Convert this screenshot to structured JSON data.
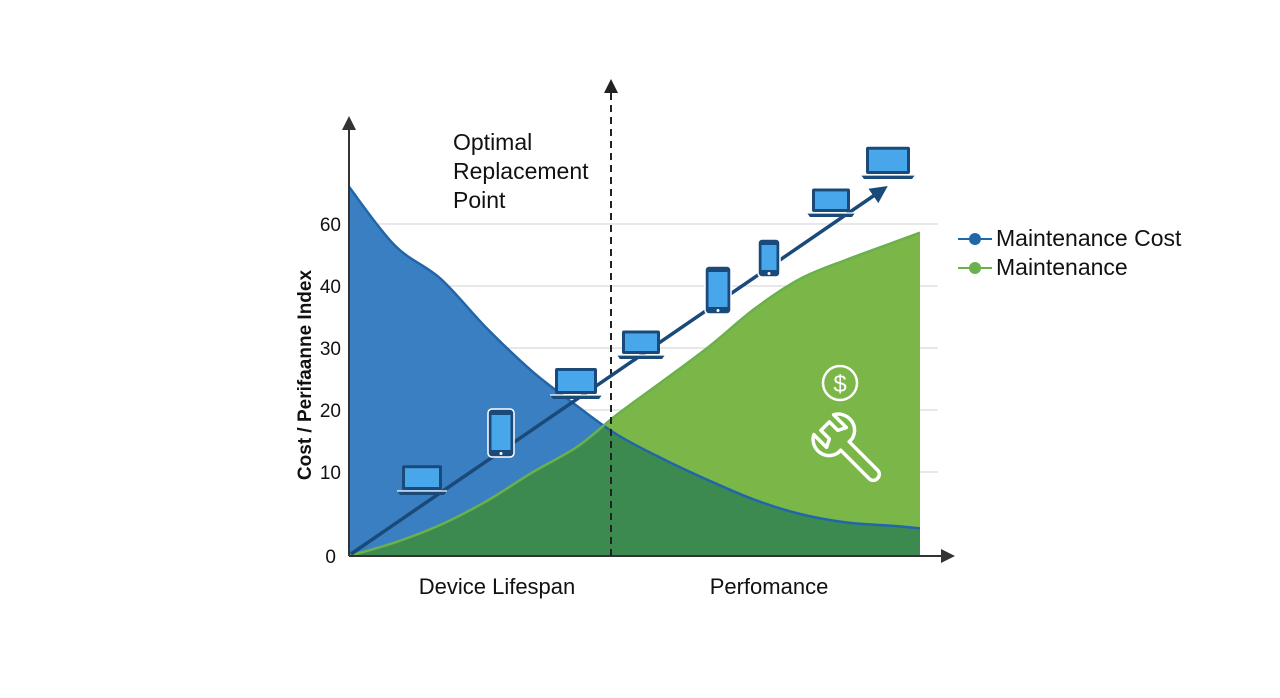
{
  "chart_data": {
    "type": "area",
    "title": "",
    "ylabel": "Cost / Perifaanne Index",
    "xlabels": [
      "Device Lifespan",
      "Perfomance"
    ],
    "y_ticks": [
      0,
      10,
      20,
      30,
      40,
      60
    ],
    "annotation": "Optimal Replacement Point",
    "annotation_lines": [
      "Optimal",
      "Replacement",
      "Point"
    ],
    "series": [
      {
        "name": "Maintenance Cost",
        "color": "#3a7fc1",
        "line_color": "#2266aa",
        "values": [
          66.0,
          53.1,
          42.4,
          33.3,
          26.3,
          20.6,
          16.0,
          12.1,
          9.0,
          6.7,
          5.0,
          4.0,
          3.6,
          3.3
        ]
      },
      {
        "name": "Maintenance",
        "color": "#7ab648",
        "line_color": "#6ab04c",
        "values": [
          0.0,
          1.6,
          3.7,
          6.5,
          9.9,
          14.1,
          19.3,
          24.7,
          30.2,
          36.3,
          42.3,
          48.4,
          53.8,
          57.2
        ]
      }
    ],
    "x": [
      0,
      0.08,
      0.16,
      0.24,
      0.32,
      0.4,
      0.47,
      0.55,
      0.63,
      0.71,
      0.79,
      0.87,
      0.95,
      1.0
    ],
    "overlap_color": "#3c8a50",
    "trend_arrow_color": "#1a4a7a",
    "icons": [
      "laptop-icon",
      "phone-icon",
      "laptop-icon",
      "laptop-icon",
      "phone-icon",
      "phone-icon",
      "laptop-icon",
      "laptop-icon",
      "dollar-icon",
      "wrench-icon"
    ],
    "dollar_symbol": "$"
  }
}
